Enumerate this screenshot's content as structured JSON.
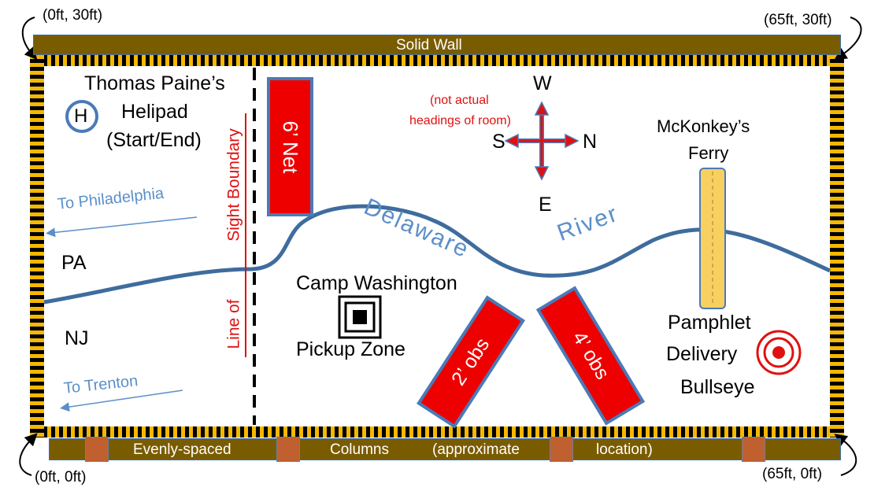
{
  "corners": {
    "top_left": "(0ft, 30ft)",
    "top_right": "(65ft, 30ft)",
    "bottom_left": "(0ft, 0ft)",
    "bottom_right": "(65ft, 0ft)"
  },
  "walls": {
    "top_label": "Solid Wall",
    "bottom_labels": [
      "Evenly-spaced",
      "Columns",
      "(approximate",
      "location)"
    ]
  },
  "helipad": {
    "symbol": "H",
    "lines": [
      "Thomas Paine’s",
      "Helipad",
      "(Start/End)"
    ]
  },
  "sight_boundary": {
    "line1": "Sight Boundary",
    "line2": "Line of"
  },
  "obstacles": {
    "net": "6’ Net",
    "obs2": "2’ obs",
    "obs4": "4’ obs"
  },
  "compass": {
    "note_line1": "(not actual",
    "note_line2": "headings of room)",
    "w": "W",
    "s": "S",
    "n": "N",
    "e": "E"
  },
  "ferry": {
    "line1": "McKonkey’s",
    "line2": "Ferry"
  },
  "river": {
    "word1": "Delaware",
    "word2": "River"
  },
  "directions": {
    "philadelphia": "To Philadelphia",
    "trenton": "To Trenton"
  },
  "states": {
    "pa": "PA",
    "nj": "NJ"
  },
  "camp": {
    "title": "Camp Washington",
    "pickup": "Pickup Zone"
  },
  "delivery": {
    "line1": "Pamphlet",
    "line2": "Delivery",
    "line3": "Bullseye"
  },
  "colors": {
    "hazard_yellow": "#f5b800",
    "wall_brown": "#7a5c00",
    "obstacle_red": "#ee0000",
    "border_blue": "#4a7ab8",
    "river_blue": "#3f6c9e",
    "label_red": "#e01010",
    "label_blue": "#5b8fc9",
    "ferry_yellow": "#f7d060"
  }
}
